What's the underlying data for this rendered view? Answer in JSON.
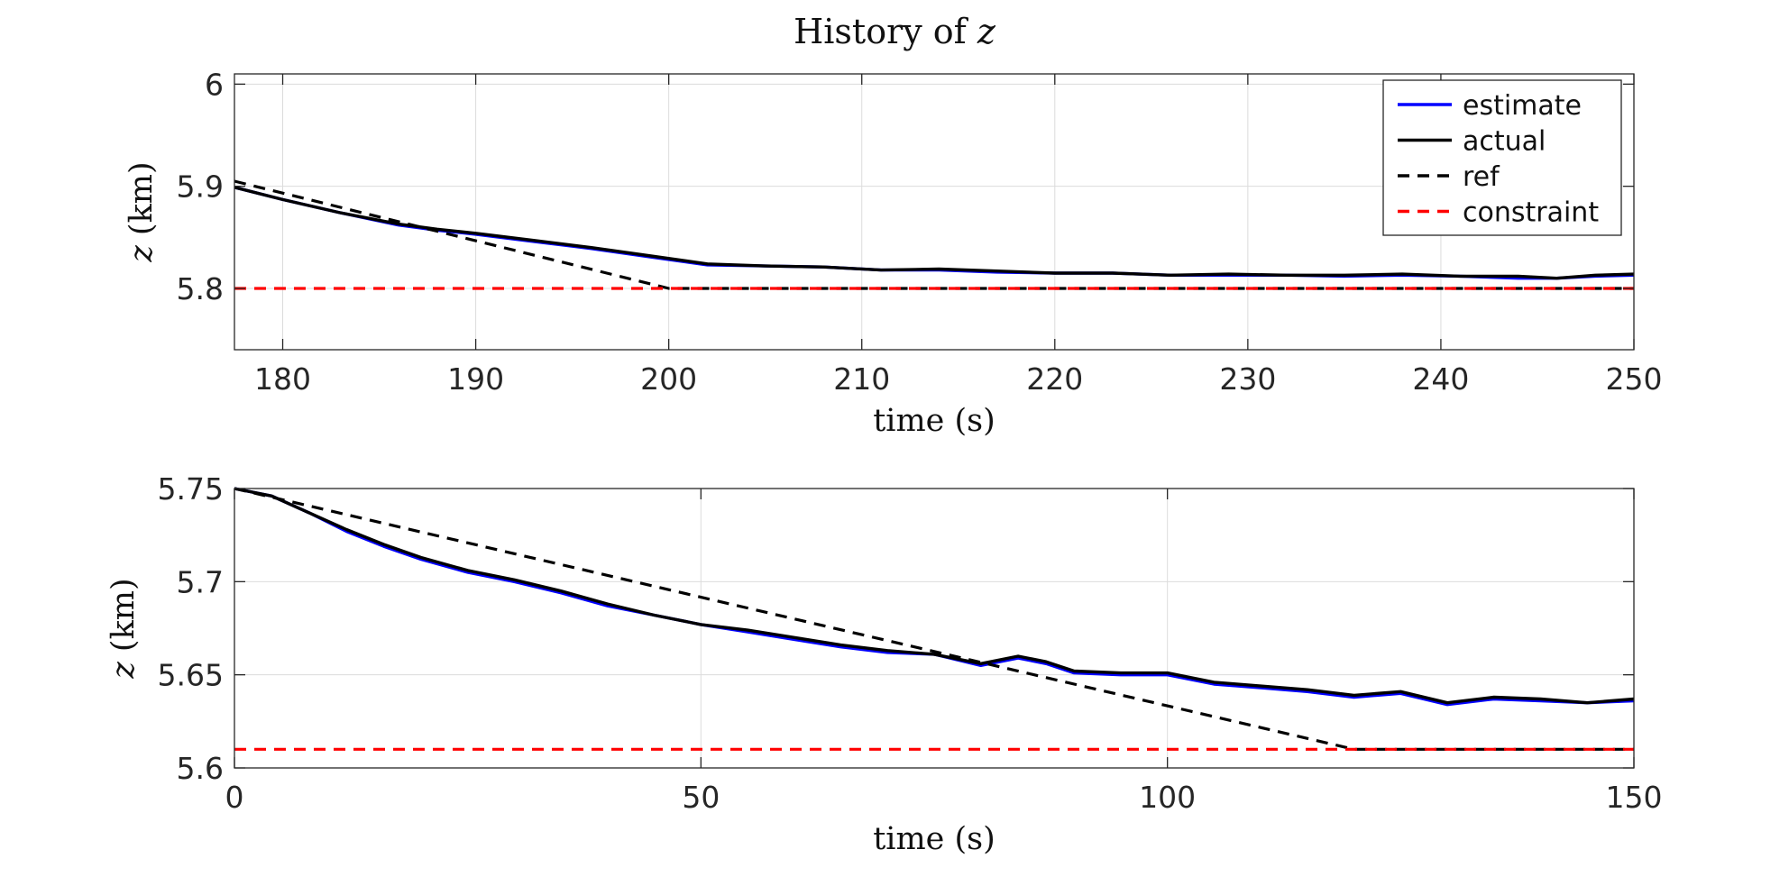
{
  "title_prefix": "History of ",
  "title_var": "z",
  "legend": [
    {
      "label": "estimate",
      "color": "#0000ff",
      "dash": false
    },
    {
      "label": "actual",
      "color": "#000000",
      "dash": false
    },
    {
      "label": "ref",
      "color": "#000000",
      "dash": true
    },
    {
      "label": "constraint",
      "color": "#ff0000",
      "dash": true
    }
  ],
  "chart_data": [
    {
      "type": "line",
      "xlabel": "time (s)",
      "ylabel_var": "z",
      "ylabel_unit": " (km)",
      "xlim": [
        177.5,
        250
      ],
      "ylim": [
        5.74,
        6.01
      ],
      "xticks": [
        180,
        190,
        200,
        210,
        220,
        230,
        240,
        250
      ],
      "yticks": [
        5.8,
        5.9,
        6
      ],
      "ytick_labels": [
        "5.8",
        "5.9",
        "6"
      ],
      "grid": true,
      "legend_position": "top-right",
      "series": [
        {
          "name": "estimate",
          "color": "#0000ff",
          "dash": false,
          "x": [
            177.5,
            180,
            183,
            186,
            188,
            190,
            193,
            196,
            199,
            202,
            205,
            208,
            211,
            214,
            217,
            220,
            223,
            226,
            229,
            232,
            235,
            238,
            241,
            244,
            246,
            248,
            250
          ],
          "y": [
            5.899,
            5.887,
            5.874,
            5.862,
            5.857,
            5.853,
            5.846,
            5.839,
            5.831,
            5.823,
            5.822,
            5.821,
            5.818,
            5.818,
            5.816,
            5.815,
            5.815,
            5.813,
            5.813,
            5.813,
            5.812,
            5.813,
            5.812,
            5.81,
            5.81,
            5.812,
            5.813
          ]
        },
        {
          "name": "actual",
          "color": "#000000",
          "dash": false,
          "x": [
            177.5,
            180,
            183,
            186,
            188,
            190,
            193,
            196,
            199,
            202,
            205,
            208,
            211,
            214,
            217,
            220,
            223,
            226,
            229,
            232,
            235,
            238,
            241,
            244,
            246,
            248,
            250
          ],
          "y": [
            5.899,
            5.887,
            5.874,
            5.863,
            5.858,
            5.854,
            5.847,
            5.84,
            5.832,
            5.824,
            5.822,
            5.821,
            5.818,
            5.819,
            5.817,
            5.815,
            5.815,
            5.813,
            5.814,
            5.813,
            5.813,
            5.814,
            5.812,
            5.812,
            5.81,
            5.813,
            5.814
          ]
        },
        {
          "name": "ref",
          "color": "#000000",
          "dash": true,
          "x": [
            177.5,
            200,
            250
          ],
          "y": [
            5.905,
            5.8,
            5.8
          ]
        },
        {
          "name": "constraint",
          "color": "#ff0000",
          "dash": true,
          "x": [
            177.5,
            250
          ],
          "y": [
            5.8,
            5.8
          ]
        }
      ]
    },
    {
      "type": "line",
      "xlabel": "time (s)",
      "ylabel_var": "z",
      "ylabel_unit": " (km)",
      "xlim": [
        0,
        150
      ],
      "ylim": [
        5.6,
        5.75
      ],
      "xticks": [
        0,
        50,
        100,
        150
      ],
      "yticks": [
        5.6,
        5.65,
        5.7,
        5.75
      ],
      "ytick_labels": [
        "5.6",
        "5.65",
        "5.7",
        "5.75"
      ],
      "grid": true,
      "series": [
        {
          "name": "estimate",
          "color": "#0000ff",
          "dash": false,
          "x": [
            0,
            4,
            8,
            12,
            16,
            20,
            25,
            30,
            35,
            40,
            45,
            50,
            55,
            60,
            65,
            70,
            75,
            80,
            84,
            87,
            90,
            95,
            100,
            105,
            110,
            115,
            120,
            125,
            130,
            135,
            140,
            145,
            150
          ],
          "y": [
            5.75,
            5.746,
            5.737,
            5.727,
            5.719,
            5.712,
            5.705,
            5.7,
            5.694,
            5.687,
            5.682,
            5.677,
            5.673,
            5.669,
            5.665,
            5.662,
            5.661,
            5.655,
            5.659,
            5.656,
            5.651,
            5.65,
            5.65,
            5.645,
            5.643,
            5.641,
            5.638,
            5.64,
            5.634,
            5.637,
            5.636,
            5.635,
            5.636
          ]
        },
        {
          "name": "actual",
          "color": "#000000",
          "dash": false,
          "x": [
            0,
            4,
            8,
            12,
            16,
            20,
            25,
            30,
            35,
            40,
            45,
            50,
            55,
            60,
            65,
            70,
            75,
            80,
            84,
            87,
            90,
            95,
            100,
            105,
            110,
            115,
            120,
            125,
            130,
            135,
            140,
            145,
            150
          ],
          "y": [
            5.75,
            5.746,
            5.737,
            5.728,
            5.72,
            5.713,
            5.706,
            5.701,
            5.695,
            5.688,
            5.682,
            5.677,
            5.674,
            5.67,
            5.666,
            5.663,
            5.661,
            5.656,
            5.66,
            5.657,
            5.652,
            5.651,
            5.651,
            5.646,
            5.644,
            5.642,
            5.639,
            5.641,
            5.635,
            5.638,
            5.637,
            5.635,
            5.637
          ]
        },
        {
          "name": "ref",
          "color": "#000000",
          "dash": true,
          "x": [
            0,
            120,
            150
          ],
          "y": [
            5.75,
            5.61,
            5.61
          ]
        },
        {
          "name": "constraint",
          "color": "#ff0000",
          "dash": true,
          "x": [
            0,
            150
          ],
          "y": [
            5.61,
            5.61
          ]
        }
      ]
    }
  ]
}
